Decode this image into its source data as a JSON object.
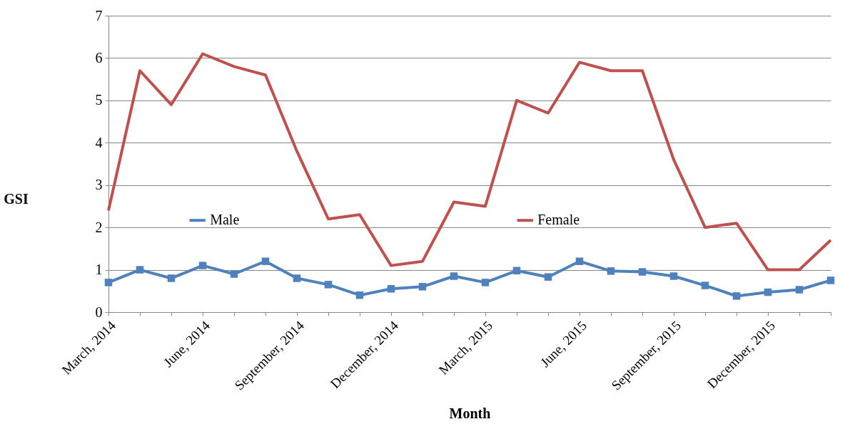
{
  "chart_data": {
    "type": "line",
    "xlabel": "Month",
    "ylabel": "GSI",
    "categories": [
      "March, 2014",
      null,
      null,
      "June, 2014",
      null,
      null,
      "September, 2014",
      null,
      null,
      "December, 2014",
      null,
      null,
      "March, 2015",
      null,
      null,
      "June, 2015",
      null,
      null,
      "September, 2015",
      null,
      null,
      "December, 2015",
      null,
      null
    ],
    "series": [
      {
        "name": "Male",
        "color": "#4f81bd",
        "marker": "square",
        "values": [
          0.7,
          1.0,
          0.8,
          1.1,
          0.9,
          1.2,
          0.8,
          0.65,
          0.4,
          0.55,
          0.6,
          0.85,
          0.7,
          0.98,
          0.83,
          1.2,
          0.97,
          0.95,
          0.85,
          0.63,
          0.38,
          0.47,
          0.53,
          0.75
        ]
      },
      {
        "name": "Female",
        "color": "#c0504d",
        "marker": "none",
        "values": [
          2.4,
          5.7,
          4.9,
          6.1,
          5.8,
          5.6,
          3.8,
          2.2,
          2.3,
          1.1,
          1.2,
          2.6,
          2.5,
          5.0,
          4.7,
          5.9,
          5.7,
          5.7,
          3.6,
          2.0,
          2.1,
          1.0,
          1.0,
          1.7
        ]
      }
    ],
    "ylim": [
      0,
      7
    ],
    "yticks": [
      0,
      1,
      2,
      3,
      4,
      5,
      6,
      7
    ],
    "grid": "y",
    "legend": "center"
  }
}
